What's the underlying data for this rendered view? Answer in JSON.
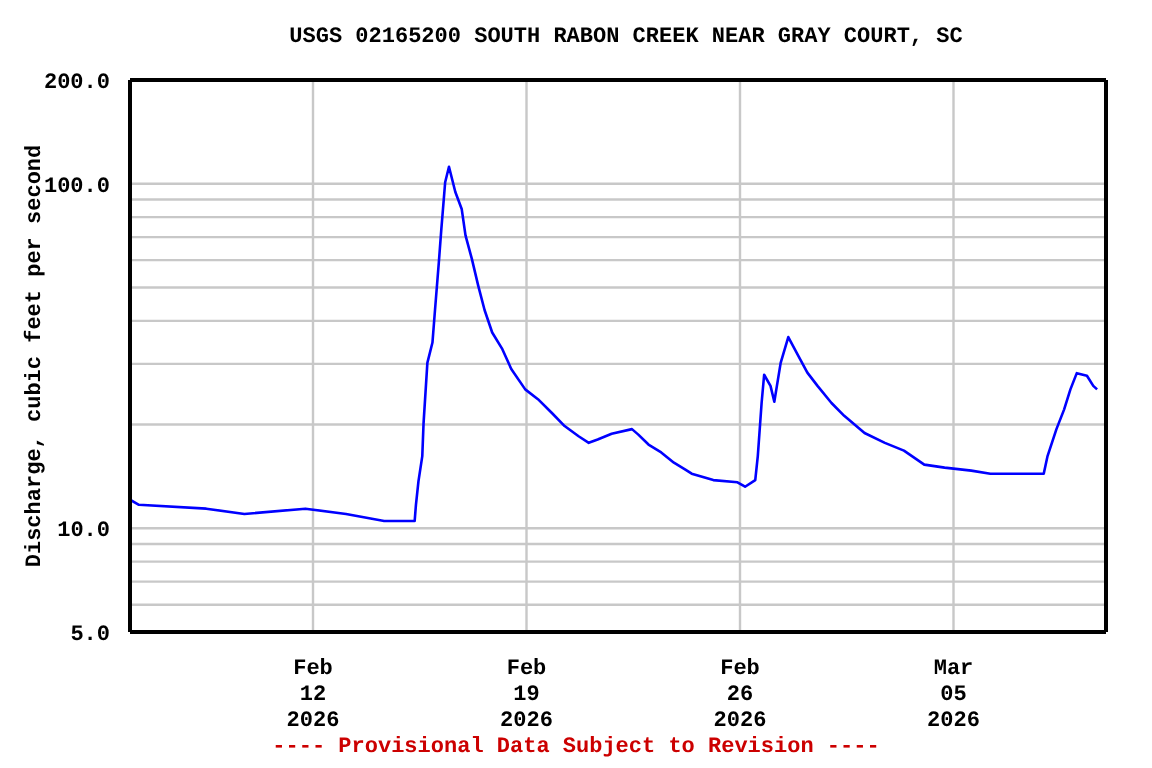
{
  "chart_data": {
    "type": "line",
    "title": "USGS 02165200 SOUTH RABON CREEK NEAR GRAY COURT, SC",
    "ylabel": "Discharge, cubic feet per second",
    "annotations": [
      "---- Provisional Data Subject to Revision ----"
    ],
    "log": "y",
    "grid": true,
    "xlim": [
      "2026-02-06",
      "2026-03-10"
    ],
    "xticks": [
      {
        "value": "2026-02-12",
        "label": "Feb\n12\n2026"
      },
      {
        "value": "2026-02-19",
        "label": "Feb\n19\n2026"
      },
      {
        "value": "2026-02-26",
        "label": "Feb\n26\n2026"
      },
      {
        "value": "2026-03-05",
        "label": "Mar\n05\n2026"
      }
    ],
    "ylim": [
      5,
      200
    ],
    "yticks": [
      {
        "value": 5,
        "label": "5.0"
      },
      {
        "value": 6,
        "label": null
      },
      {
        "value": 7,
        "label": null
      },
      {
        "value": 8,
        "label": null
      },
      {
        "value": 9,
        "label": null
      },
      {
        "value": 10,
        "label": "10.0"
      },
      {
        "value": 20,
        "label": null
      },
      {
        "value": 30,
        "label": null
      },
      {
        "value": 40,
        "label": null
      },
      {
        "value": 50,
        "label": null
      },
      {
        "value": 60,
        "label": null
      },
      {
        "value": 70,
        "label": null
      },
      {
        "value": 80,
        "label": null
      },
      {
        "value": 90,
        "label": null
      },
      {
        "value": 100,
        "label": "100.0"
      },
      {
        "value": 200,
        "label": "200.0"
      }
    ],
    "x": [
      "2026-02-06T00:00",
      "2026-02-06T07:00",
      "2026-02-08T12:00",
      "2026-02-09T18:00",
      "2026-02-11T18:00",
      "2026-02-13T02:00",
      "2026-02-14T08:00",
      "2026-02-15T08:00",
      "2026-02-15T09:00",
      "2026-02-15T11:00",
      "2026-02-15T14:00",
      "2026-02-15T15:00",
      "2026-02-15T18:00",
      "2026-02-15T22:00",
      "2026-02-16T00:00",
      "2026-02-16T03:00",
      "2026-02-16T05:00",
      "2026-02-16T08:00",
      "2026-02-16T11:00",
      "2026-02-16T16:00",
      "2026-02-16T21:00",
      "2026-02-17T00:00",
      "2026-02-17T05:00",
      "2026-02-17T10:00",
      "2026-02-17T15:00",
      "2026-02-17T21:00",
      "2026-02-18T05:00",
      "2026-02-18T12:00",
      "2026-02-18T23:00",
      "2026-02-19T09:00",
      "2026-02-19T20:00",
      "2026-02-20T06:00",
      "2026-02-20T17:00",
      "2026-02-21T01:00",
      "2026-02-21T08:00",
      "2026-02-21T19:00",
      "2026-02-22T11:00",
      "2026-02-22T16:00",
      "2026-02-23T00:00",
      "2026-02-23T10:00",
      "2026-02-23T20:00",
      "2026-02-24T05:00",
      "2026-02-24T10:00",
      "2026-02-25T03:00",
      "2026-02-25T22:00",
      "2026-02-26T04:00",
      "2026-02-26T12:00",
      "2026-02-26T14:00",
      "2026-02-26T17:00",
      "2026-02-26T19:00",
      "2026-02-27T00:00",
      "2026-02-27T03:00",
      "2026-02-27T08:00",
      "2026-02-27T14:00",
      "2026-02-27T22:00",
      "2026-02-28T05:00",
      "2026-02-28T13:00",
      "2026-03-01T00:00",
      "2026-03-01T10:00",
      "2026-03-02T02:00",
      "2026-03-02T18:00",
      "2026-03-03T09:00",
      "2026-03-04T01:00",
      "2026-03-04T17:00",
      "2026-03-05T14:00",
      "2026-03-06T05:00",
      "2026-03-07T23:00",
      "2026-03-08T02:00",
      "2026-03-08T09:00",
      "2026-03-08T15:00",
      "2026-03-08T20:00",
      "2026-03-09T01:00",
      "2026-03-09T09:00",
      "2026-03-09T14:00",
      "2026-03-09T17:00"
    ],
    "series": [
      {
        "color": "#0000ff",
        "values": [
          12.1,
          11.7,
          11.4,
          11.0,
          11.4,
          11.0,
          10.5,
          10.5,
          11.7,
          13.7,
          16.2,
          20.2,
          30.2,
          34.6,
          43,
          59,
          74,
          101,
          112,
          94.6,
          84.5,
          70.8,
          60.5,
          50.6,
          43,
          37,
          33.1,
          29,
          25.3,
          23.7,
          21.6,
          19.8,
          18.5,
          17.7,
          18.1,
          18.8,
          19.4,
          18.7,
          17.5,
          16.6,
          15.5,
          14.8,
          14.4,
          13.8,
          13.6,
          13.2,
          13.8,
          16.2,
          23.1,
          27.9,
          25.9,
          23.3,
          30.2,
          35.9,
          31.6,
          28.3,
          25.9,
          23.1,
          21.2,
          18.9,
          17.7,
          16.8,
          15.3,
          15.0,
          14.7,
          14.4,
          14.4,
          16.2,
          19.4,
          22.1,
          25.3,
          28.2,
          27.7,
          25.9,
          25.3
        ]
      }
    ]
  }
}
